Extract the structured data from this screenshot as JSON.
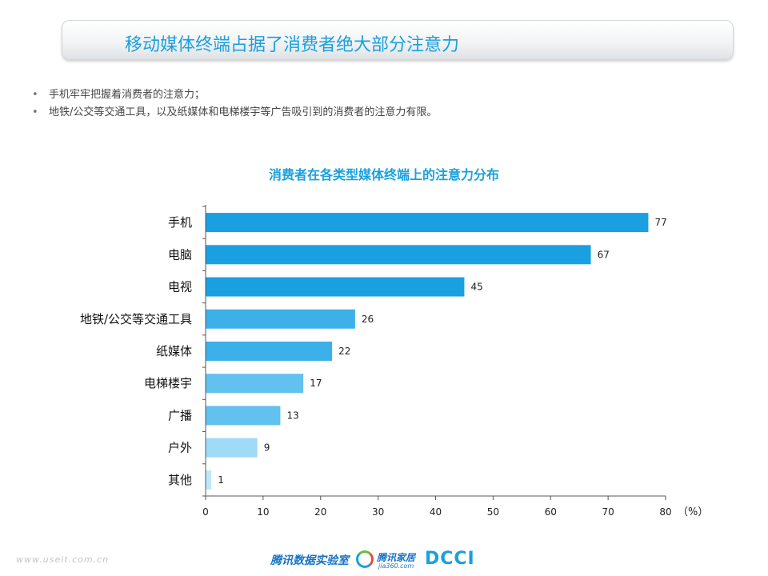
{
  "header": {
    "title": "移动媒体终端占据了消费者绝大部分注意力"
  },
  "bullets": [
    "手机牢牢把握着消费者的注意力；",
    "地铁/公交等交通工具，以及纸媒体和电梯楼宇等广告吸引到的消费者的注意力有限。"
  ],
  "bullet_marker": "•",
  "chart_data": {
    "type": "bar",
    "orientation": "horizontal",
    "title": "消费者在各类型媒体终端上的注意力分布",
    "categories": [
      "手机",
      "电脑",
      "电视",
      "地铁/公交等交通工具",
      "纸媒体",
      "电梯楼宇",
      "广播",
      "户外",
      "其他"
    ],
    "values": [
      77,
      67,
      45,
      26,
      22,
      17,
      13,
      9,
      1
    ],
    "bar_colors": [
      "#1aa0e0",
      "#1aa0e0",
      "#1aa0e0",
      "#3cb0e8",
      "#3cb0e8",
      "#62c1ef",
      "#62c1ef",
      "#9fdaf6",
      "#c0e7f9"
    ],
    "xlim": [
      0,
      80
    ],
    "xticks": [
      0,
      10,
      20,
      30,
      40,
      50,
      60,
      70,
      80
    ],
    "unit_label": "（%）",
    "data_labels": true,
    "grid": false
  },
  "footer": {
    "url": "www.useit.com.cn",
    "lab": "腾讯数据实验室",
    "brand": "腾讯家居",
    "brand_sub": "jia360.com",
    "dcci": "DCCI"
  },
  "colors": {
    "accent": "#1aa0dd",
    "axis": "#444444"
  }
}
